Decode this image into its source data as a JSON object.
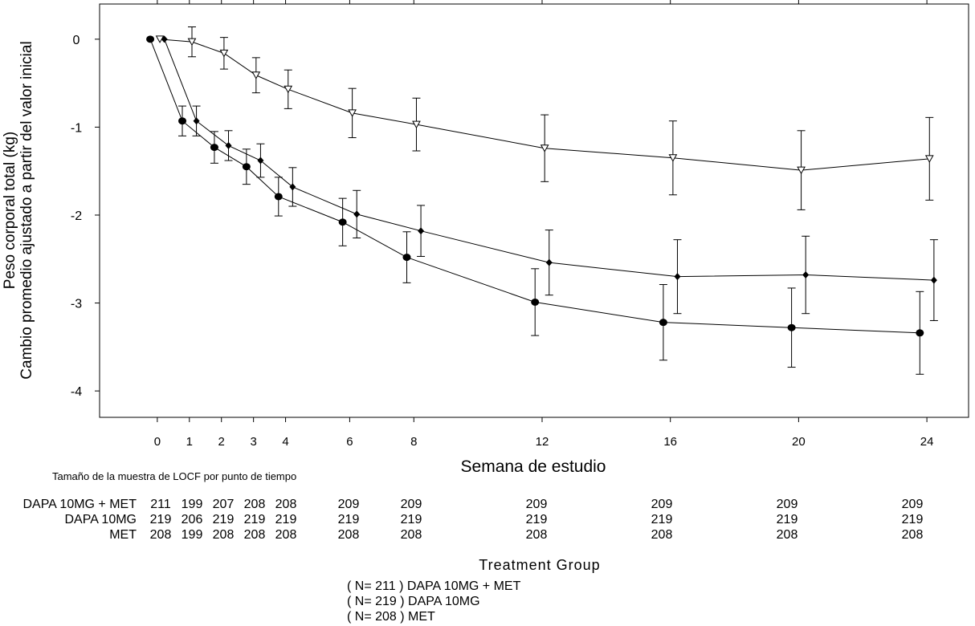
{
  "chart_data": {
    "type": "line",
    "xlabel": "Semana de estudio",
    "ylabel_line1": "Cambio promedio ajustado a partir del valor inicial",
    "ylabel_line2": "Peso corporal total (kg)",
    "x_ticks": [
      0,
      1,
      2,
      3,
      4,
      6,
      8,
      12,
      16,
      20,
      24
    ],
    "y_ticks": [
      0,
      -1,
      -2,
      -3,
      -4
    ],
    "xlim": [
      -1.8,
      25.3
    ],
    "ylim": [
      -4.3,
      0.4
    ],
    "grid": false,
    "series": [
      {
        "name": "DAPA 10MG + MET",
        "marker": "diamond",
        "x": [
          0,
          1,
          2,
          3,
          4,
          6,
          8,
          12,
          16,
          20,
          24
        ],
        "y": [
          0,
          -0.93,
          -1.21,
          -1.38,
          -1.68,
          -1.99,
          -2.18,
          -2.54,
          -2.7,
          -2.68,
          -2.74
        ],
        "err": [
          0,
          0.17,
          0.17,
          0.19,
          0.22,
          0.27,
          0.29,
          0.37,
          0.42,
          0.44,
          0.46
        ]
      },
      {
        "name": "DAPA 10MG",
        "marker": "circle",
        "x": [
          0,
          1,
          2,
          3,
          4,
          6,
          8,
          12,
          16,
          20,
          24
        ],
        "y": [
          0,
          -0.93,
          -1.23,
          -1.45,
          -1.79,
          -2.08,
          -2.48,
          -2.99,
          -3.22,
          -3.28,
          -3.34
        ],
        "err": [
          0,
          0.17,
          0.18,
          0.2,
          0.22,
          0.27,
          0.29,
          0.38,
          0.43,
          0.45,
          0.47
        ]
      },
      {
        "name": "MET",
        "marker": "triangle-down",
        "x": [
          0,
          1,
          2,
          3,
          4,
          6,
          8,
          12,
          16,
          20,
          24
        ],
        "y": [
          0,
          -0.03,
          -0.16,
          -0.41,
          -0.57,
          -0.84,
          -0.97,
          -1.24,
          -1.35,
          -1.49,
          -1.36
        ],
        "err": [
          0,
          0.17,
          0.18,
          0.2,
          0.22,
          0.28,
          0.3,
          0.38,
          0.42,
          0.45,
          0.47
        ]
      }
    ]
  },
  "sample_size": {
    "title": "Tamaño de la muestra de LOCF por punto de tiempo",
    "rows": [
      {
        "label": "DAPA 10MG + MET",
        "values": [
          "211",
          "199",
          "207",
          "208",
          "208",
          "209",
          "209",
          "209",
          "209",
          "209",
          "209"
        ]
      },
      {
        "label": "DAPA 10MG",
        "values": [
          "219",
          "206",
          "219",
          "219",
          "219",
          "219",
          "219",
          "219",
          "219",
          "219",
          "219"
        ]
      },
      {
        "label": "MET",
        "values": [
          "208",
          "199",
          "208",
          "208",
          "208",
          "208",
          "208",
          "208",
          "208",
          "208",
          "208"
        ]
      }
    ]
  },
  "legend": {
    "title": "Treatment Group",
    "items": [
      "( N= 211 ) DAPA 10MG + MET",
      "( N= 219 ) DAPA 10MG",
      "( N= 208 ) MET"
    ]
  }
}
